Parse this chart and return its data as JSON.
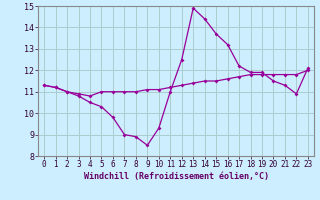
{
  "xlabel": "Windchill (Refroidissement éolien,°C)",
  "ylabel": "",
  "bg_color": "#cceeff",
  "grid_color": "#aacccc",
  "line_color": "#990099",
  "xlim": [
    -0.5,
    23.5
  ],
  "ylim": [
    8,
    15
  ],
  "xticks": [
    0,
    1,
    2,
    3,
    4,
    5,
    6,
    7,
    8,
    9,
    10,
    11,
    12,
    13,
    14,
    15,
    16,
    17,
    18,
    19,
    20,
    21,
    22,
    23
  ],
  "yticks": [
    8,
    9,
    10,
    11,
    12,
    13,
    14,
    15
  ],
  "line1_x": [
    0,
    1,
    2,
    3,
    4,
    5,
    6,
    7,
    8,
    9,
    10,
    11,
    12,
    13,
    14,
    15,
    16,
    17,
    18,
    19,
    20,
    21,
    22,
    23
  ],
  "line1_y": [
    11.3,
    11.2,
    11.0,
    10.8,
    10.5,
    10.3,
    9.8,
    9.0,
    8.9,
    8.5,
    9.3,
    11.0,
    12.5,
    14.9,
    14.4,
    13.7,
    13.2,
    12.2,
    11.9,
    11.9,
    11.5,
    11.3,
    10.9,
    12.1
  ],
  "line2_x": [
    0,
    1,
    2,
    3,
    4,
    5,
    6,
    7,
    8,
    9,
    10,
    11,
    12,
    13,
    14,
    15,
    16,
    17,
    18,
    19,
    20,
    21,
    22,
    23
  ],
  "line2_y": [
    11.3,
    11.2,
    11.0,
    10.9,
    10.8,
    11.0,
    11.0,
    11.0,
    11.0,
    11.1,
    11.1,
    11.2,
    11.3,
    11.4,
    11.5,
    11.5,
    11.6,
    11.7,
    11.8,
    11.8,
    11.8,
    11.8,
    11.8,
    12.0
  ],
  "xlabel_color": "#660066",
  "xlabel_fontsize": 6,
  "tick_fontsize": 5.5,
  "line_width": 0.9,
  "marker_size": 2.0
}
